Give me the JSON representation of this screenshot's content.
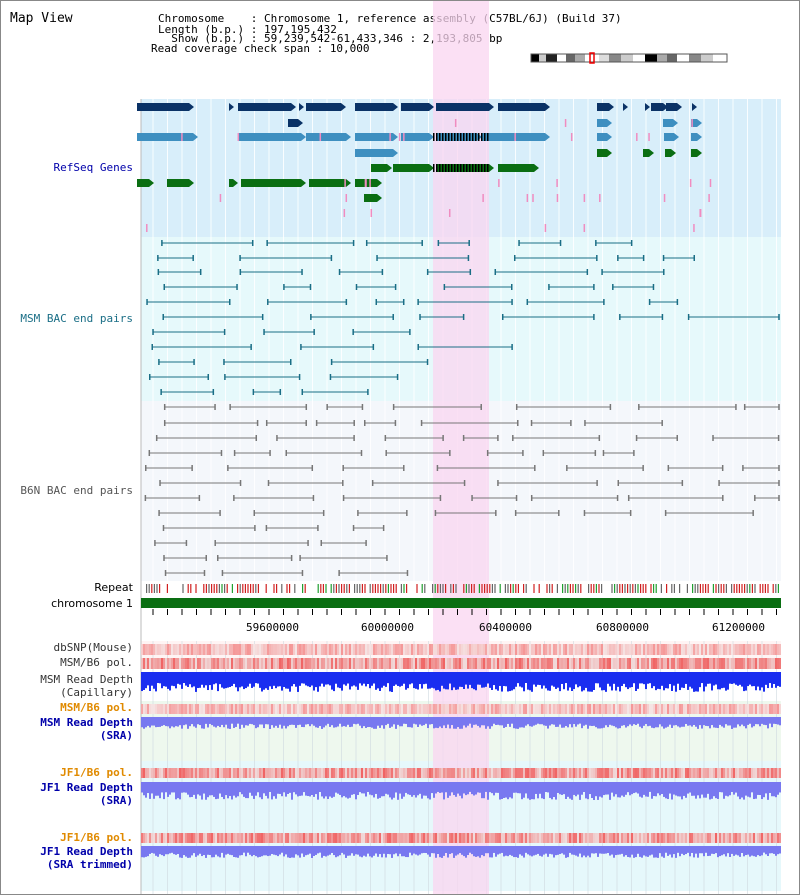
{
  "map_view": {
    "title": "Map View",
    "header": {
      "chromosome_label": "Chromosome    : ",
      "chromosome_value": "Chromosome 1, reference assembly (C57BL/6J) (Build 37)",
      "length_label": "Length (b.p.) : ",
      "length_value": "197,195,432",
      "show_label": "  Show (b.p.) : ",
      "show_value": "59,239,542-61,433,346 : 2,193,805 bp",
      "coverage_label": "Read coverage check span : ",
      "coverage_value": "10,000"
    },
    "tracks": {
      "refseq": "RefSeq Genes",
      "msm_bac": "MSM BAC end pairs",
      "b6n_bac": "B6N BAC end pairs",
      "repeat": "Repeat",
      "chromosome": "chromosome 1",
      "dbsnp": "dbSNP(Mouse)",
      "msm_b6_pol": "MSM/B6 pol.",
      "msm_read_depth_cap_1": "MSM Read Depth",
      "msm_read_depth_cap_2": "(Capillary)",
      "msm_b6_pol_sra": "MSM/B6 pol.",
      "msm_read_depth_sra_1": "MSM Read Depth",
      "msm_read_depth_sra_2": "(SRA)",
      "jf1_b6_pol": "JF1/B6 pol.",
      "jf1_read_depth_sra_1": "JF1 Read Depth",
      "jf1_read_depth_sra_2": "(SRA)",
      "jf1_b6_pol_trim": "JF1/B6 pol.",
      "jf1_read_depth_trim_1": "JF1 Read Depth",
      "jf1_read_depth_trim_2": "(SRA trimmed)"
    },
    "axis_ticks": [
      "59600000",
      "60000000",
      "60400000",
      "60800000",
      "61200000"
    ],
    "colors": {
      "highlight": "#f9d6f0",
      "refseq_bg": "#d8eefa",
      "msm_bg": "#e6f9fb",
      "b6n_bg": "#f4f7fb",
      "refseq_dark": "#0a3266",
      "refseq_light": "#3e8fc0",
      "refseq_green": "#0a6e12",
      "msm_line": "#1a6e86",
      "b6n_line": "#777777",
      "chromosome_bar": "#0a6e12",
      "read_depth_blue": "#1a2ef0",
      "read_depth_sra": "#7878f0",
      "label_blue": "#0000aa",
      "label_teal": "#1a6e86",
      "label_orange": "#e08a00"
    }
  }
}
